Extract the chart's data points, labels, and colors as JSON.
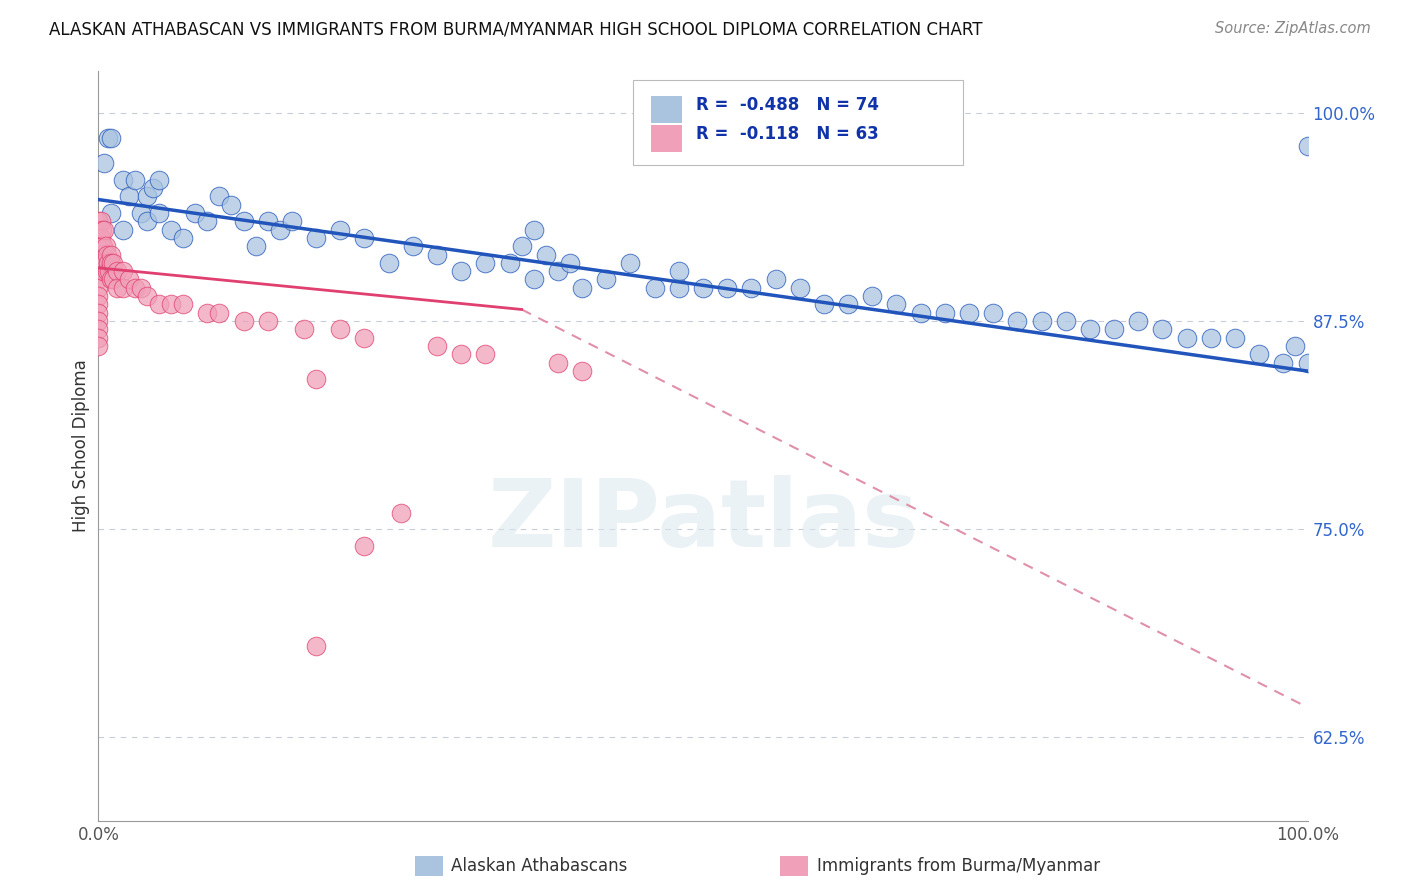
{
  "title": "ALASKAN ATHABASCAN VS IMMIGRANTS FROM BURMA/MYANMAR HIGH SCHOOL DIPLOMA CORRELATION CHART",
  "source": "Source: ZipAtlas.com",
  "ylabel": "High School Diploma",
  "legend_label1": "Alaskan Athabascans",
  "legend_label2": "Immigrants from Burma/Myanmar",
  "legend_r1": "R =  -0.488",
  "legend_n1": "N = 74",
  "legend_r2": "R =  -0.118",
  "legend_n2": "N = 63",
  "color_blue": "#aac4e0",
  "color_pink": "#f0a0b8",
  "line_blue": "#2255bb",
  "line_pink": "#e04070",
  "line_dash_color": "#e090a8",
  "ytick_labels": [
    "100.0%",
    "87.5%",
    "75.0%",
    "62.5%"
  ],
  "ytick_values": [
    1.0,
    0.875,
    0.75,
    0.625
  ],
  "xlim": [
    0.0,
    1.0
  ],
  "ylim": [
    0.575,
    1.025
  ],
  "background": "#ffffff",
  "blue_trend": [
    0.0,
    0.948,
    1.0,
    0.845
  ],
  "pink_solid": [
    0.0,
    0.907,
    0.35,
    0.882
  ],
  "pink_dash": [
    0.35,
    0.882,
    1.0,
    0.643
  ],
  "blue_scatter_x": [
    0.005,
    0.008,
    0.01,
    0.01,
    0.02,
    0.02,
    0.025,
    0.03,
    0.035,
    0.04,
    0.04,
    0.045,
    0.05,
    0.05,
    0.06,
    0.07,
    0.08,
    0.09,
    0.1,
    0.11,
    0.12,
    0.13,
    0.14,
    0.15,
    0.16,
    0.18,
    0.2,
    0.22,
    0.24,
    0.26,
    0.28,
    0.3,
    0.32,
    0.34,
    0.36,
    0.38,
    0.4,
    0.42,
    0.44,
    0.46,
    0.48,
    0.5,
    0.52,
    0.54,
    0.56,
    0.58,
    0.6,
    0.62,
    0.64,
    0.66,
    0.68,
    0.7,
    0.72,
    0.74,
    0.76,
    0.78,
    0.8,
    0.82,
    0.84,
    0.86,
    0.88,
    0.9,
    0.92,
    0.94,
    0.96,
    0.98,
    0.99,
    1.0,
    1.0,
    0.35,
    0.37,
    0.39,
    0.36,
    0.48
  ],
  "blue_scatter_y": [
    0.97,
    0.985,
    0.94,
    0.985,
    0.93,
    0.96,
    0.95,
    0.96,
    0.94,
    0.935,
    0.95,
    0.955,
    0.94,
    0.96,
    0.93,
    0.925,
    0.94,
    0.935,
    0.95,
    0.945,
    0.935,
    0.92,
    0.935,
    0.93,
    0.935,
    0.925,
    0.93,
    0.925,
    0.91,
    0.92,
    0.915,
    0.905,
    0.91,
    0.91,
    0.9,
    0.905,
    0.895,
    0.9,
    0.91,
    0.895,
    0.895,
    0.895,
    0.895,
    0.895,
    0.9,
    0.895,
    0.885,
    0.885,
    0.89,
    0.885,
    0.88,
    0.88,
    0.88,
    0.88,
    0.875,
    0.875,
    0.875,
    0.87,
    0.87,
    0.875,
    0.87,
    0.865,
    0.865,
    0.865,
    0.855,
    0.85,
    0.86,
    0.85,
    0.98,
    0.92,
    0.915,
    0.91,
    0.93,
    0.905
  ],
  "pink_scatter_x": [
    0.0,
    0.0,
    0.0,
    0.0,
    0.0,
    0.0,
    0.0,
    0.0,
    0.0,
    0.0,
    0.0,
    0.0,
    0.0,
    0.0,
    0.0,
    0.0,
    0.002,
    0.002,
    0.002,
    0.003,
    0.003,
    0.003,
    0.004,
    0.004,
    0.005,
    0.005,
    0.006,
    0.007,
    0.007,
    0.008,
    0.009,
    0.01,
    0.01,
    0.01,
    0.012,
    0.012,
    0.015,
    0.015,
    0.02,
    0.02,
    0.025,
    0.03,
    0.035,
    0.04,
    0.05,
    0.06,
    0.07,
    0.09,
    0.1,
    0.12,
    0.14,
    0.17,
    0.2,
    0.22,
    0.28,
    0.3,
    0.32,
    0.38,
    0.4,
    0.18,
    0.18,
    0.25,
    0.22
  ],
  "pink_scatter_y": [
    0.935,
    0.93,
    0.925,
    0.92,
    0.915,
    0.91,
    0.905,
    0.9,
    0.895,
    0.89,
    0.885,
    0.88,
    0.875,
    0.87,
    0.865,
    0.86,
    0.935,
    0.925,
    0.915,
    0.93,
    0.92,
    0.91,
    0.92,
    0.905,
    0.93,
    0.91,
    0.92,
    0.915,
    0.905,
    0.91,
    0.905,
    0.915,
    0.91,
    0.9,
    0.91,
    0.9,
    0.905,
    0.895,
    0.905,
    0.895,
    0.9,
    0.895,
    0.895,
    0.89,
    0.885,
    0.885,
    0.885,
    0.88,
    0.88,
    0.875,
    0.875,
    0.87,
    0.87,
    0.865,
    0.86,
    0.855,
    0.855,
    0.85,
    0.845,
    0.68,
    0.84,
    0.76,
    0.74
  ]
}
